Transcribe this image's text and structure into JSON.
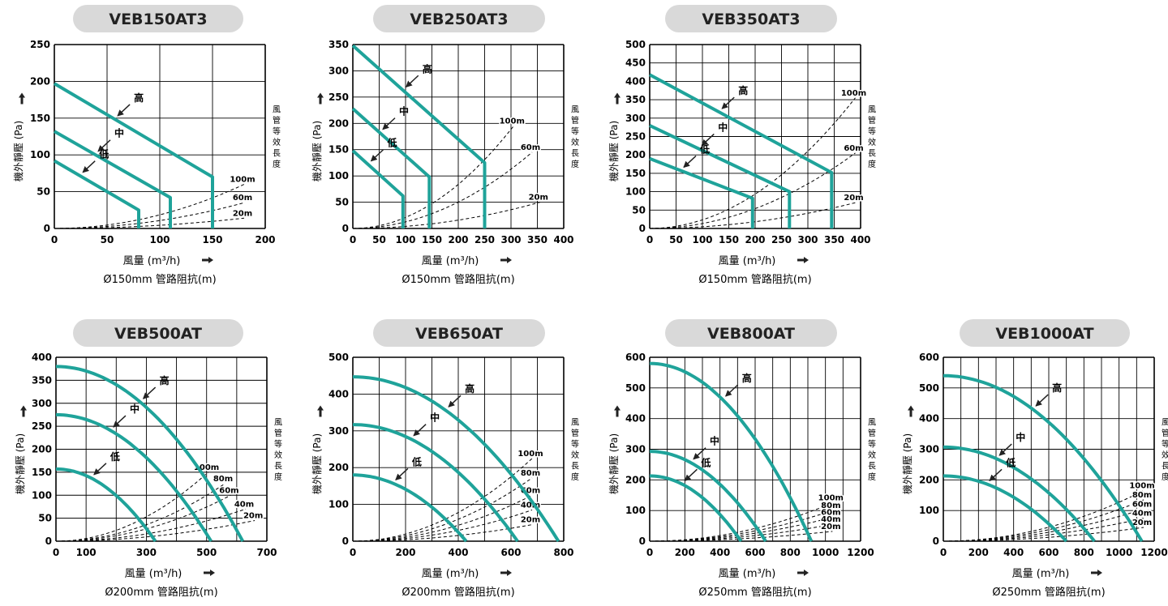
{
  "colors": {
    "curve": "#1fa39a",
    "grid": "#000000",
    "duct": "#000000",
    "pill": "#d9d9d9",
    "arrow": "#222222",
    "text": "#111111"
  },
  "icons": {
    "up_arrow": "arrow-up-icon",
    "right_arrow": "arrow-right-icon"
  },
  "chart_data": [
    {
      "type": "line",
      "title": "VEB150AT3",
      "ylabel": "機外靜壓 (Pa)",
      "xlabel": "風量 (m³/h)",
      "subxlabel": "Ø150mm 管路阻抗(m)",
      "duct_label": [
        "風",
        "管",
        "等",
        "效",
        "長",
        "度"
      ],
      "xlim": [
        0,
        200
      ],
      "ylim": [
        0,
        250
      ],
      "xticks": [
        0,
        50,
        100,
        150,
        200
      ],
      "yticks": [
        0,
        50,
        100,
        150,
        200,
        250
      ],
      "xtick_labels": [
        "0",
        "50",
        "100",
        "150",
        "200"
      ],
      "ytick_labels": [
        "0",
        "50",
        "100",
        "150",
        "200",
        "250"
      ],
      "grid": true,
      "series": [
        {
          "name": "高",
          "points": [
            [
              0,
              197
            ],
            [
              150,
              70
            ],
            [
              150,
              0
            ]
          ]
        },
        {
          "name": "中",
          "points": [
            [
              0,
              132
            ],
            [
              110,
              42
            ],
            [
              110,
              0
            ]
          ]
        },
        {
          "name": "低",
          "points": [
            [
              0,
              92
            ],
            [
              80,
              25
            ],
            [
              80,
              0
            ]
          ]
        }
      ],
      "duct_curves": [
        {
          "name": "100m",
          "end": [
            180,
            60
          ]
        },
        {
          "name": "60m",
          "end": [
            180,
            35
          ]
        },
        {
          "name": "20m",
          "end": [
            180,
            14
          ]
        }
      ]
    },
    {
      "type": "line",
      "title": "VEB250AT3",
      "ylabel": "機外靜壓 (Pa)",
      "xlabel": "風量 (m³/h)",
      "subxlabel": "Ø150mm 管路阻抗(m)",
      "duct_label": [
        "風",
        "管",
        "等",
        "效",
        "長",
        "度"
      ],
      "xlim": [
        0,
        400
      ],
      "ylim": [
        0,
        350
      ],
      "xticks": [
        0,
        50,
        100,
        150,
        200,
        250,
        300,
        350,
        400
      ],
      "yticks": [
        0,
        50,
        100,
        150,
        200,
        250,
        300,
        350
      ],
      "xtick_labels": [
        "0",
        "50",
        "100",
        "150",
        "200",
        "250",
        "300",
        "350",
        "400"
      ],
      "ytick_labels": [
        "0",
        "50",
        "100",
        "150",
        "200",
        "250",
        "300",
        "350"
      ],
      "grid": true,
      "series": [
        {
          "name": "高",
          "points": [
            [
              0,
              348
            ],
            [
              250,
              125
            ],
            [
              250,
              0
            ]
          ]
        },
        {
          "name": "中",
          "points": [
            [
              0,
              228
            ],
            [
              145,
              98
            ],
            [
              145,
              0
            ]
          ]
        },
        {
          "name": "低",
          "points": [
            [
              0,
              148
            ],
            [
              95,
              62
            ],
            [
              95,
              0
            ]
          ]
        }
      ],
      "duct_curves": [
        {
          "name": "100m",
          "end": [
            305,
            195
          ]
        },
        {
          "name": "60m",
          "end": [
            340,
            145
          ]
        },
        {
          "name": "20m",
          "end": [
            355,
            50
          ]
        }
      ]
    },
    {
      "type": "line",
      "title": "VEB350AT3",
      "ylabel": "機外靜壓 (Pa)",
      "xlabel": "風量 (m³/h)",
      "subxlabel": "Ø150mm 管路阻抗(m)",
      "duct_label": [
        "風",
        "管",
        "等",
        "效",
        "長",
        "度"
      ],
      "xlim": [
        0,
        400
      ],
      "ylim": [
        0,
        500
      ],
      "xticks": [
        0,
        50,
        100,
        150,
        200,
        250,
        300,
        350,
        400
      ],
      "yticks": [
        0,
        50,
        100,
        150,
        200,
        250,
        300,
        350,
        400,
        450,
        500
      ],
      "xtick_labels": [
        "0",
        "50",
        "100",
        "150",
        "200",
        "250",
        "300",
        "350",
        "400"
      ],
      "ytick_labels": [
        "0",
        "50",
        "100",
        "150",
        "200",
        "250",
        "300",
        "350",
        "400",
        "450",
        "500"
      ],
      "grid": true,
      "series": [
        {
          "name": "高",
          "points": [
            [
              0,
              418
            ],
            [
              345,
              152
            ],
            [
              345,
              0
            ]
          ]
        },
        {
          "name": "中",
          "points": [
            [
              0,
              280
            ],
            [
              265,
              100
            ],
            [
              265,
              0
            ]
          ]
        },
        {
          "name": "低",
          "points": [
            [
              0,
              190
            ],
            [
              195,
              82
            ],
            [
              195,
              0
            ]
          ]
        }
      ],
      "duct_curves": [
        {
          "name": "100m",
          "end": [
            390,
            355
          ]
        },
        {
          "name": "60m",
          "end": [
            390,
            205
          ]
        },
        {
          "name": "20m",
          "end": [
            390,
            70
          ]
        }
      ]
    },
    {
      "type": "line",
      "title": "VEB500AT",
      "ylabel": "機外靜壓 (Pa)",
      "xlabel": "風量 (m³/h)",
      "subxlabel": "Ø200mm 管路阻抗(m)",
      "duct_label": [
        "風",
        "管",
        "等",
        "效",
        "長",
        "度"
      ],
      "xlim": [
        0,
        700
      ],
      "ylim": [
        0,
        400
      ],
      "xticks": [
        0,
        100,
        200,
        300,
        400,
        500,
        600,
        700
      ],
      "yticks": [
        0,
        50,
        100,
        150,
        200,
        250,
        300,
        350,
        400
      ],
      "xtick_labels": [
        "0",
        "100",
        "",
        "300",
        "",
        "500",
        "",
        "700"
      ],
      "ytick_labels": [
        "0",
        "50",
        "100",
        "150",
        "200",
        "250",
        "300",
        "350",
        "400"
      ],
      "grid": true,
      "series": [
        {
          "name": "高",
          "quad": [
            380,
            620
          ]
        },
        {
          "name": "中",
          "quad": [
            275,
            515
          ]
        },
        {
          "name": "低",
          "quad": [
            157,
            330
          ]
        }
      ],
      "duct_curves": [
        {
          "name": "100m",
          "end": [
            505,
            150
          ]
        },
        {
          "name": "80m",
          "end": [
            560,
            125
          ]
        },
        {
          "name": "60m",
          "end": [
            580,
            100
          ]
        },
        {
          "name": "40m",
          "end": [
            630,
            70
          ]
        },
        {
          "name": "20m",
          "end": [
            660,
            45
          ]
        }
      ]
    },
    {
      "type": "line",
      "title": "VEB650AT",
      "ylabel": "機外靜壓 (Pa)",
      "xlabel": "風量 (m³/h)",
      "subxlabel": "Ø200mm 管路阻抗(m)",
      "duct_label": [
        "風",
        "管",
        "等",
        "效",
        "長",
        "度"
      ],
      "xlim": [
        0,
        800
      ],
      "ylim": [
        0,
        500
      ],
      "xticks": [
        0,
        100,
        200,
        300,
        400,
        500,
        600,
        700,
        800
      ],
      "yticks": [
        0,
        100,
        200,
        300,
        400,
        500
      ],
      "xtick_labels": [
        "0",
        "",
        "200",
        "",
        "400",
        "",
        "600",
        "",
        "800"
      ],
      "ytick_labels": [
        "0",
        "100",
        "200",
        "300",
        "400",
        "500"
      ],
      "grid": true,
      "series": [
        {
          "name": "高",
          "quad": [
            447,
            780
          ]
        },
        {
          "name": "中",
          "quad": [
            317,
            625
          ]
        },
        {
          "name": "低",
          "quad": [
            180,
            430
          ]
        }
      ],
      "duct_curves": [
        {
          "name": "100m",
          "end": [
            680,
            225
          ]
        },
        {
          "name": "80m",
          "end": [
            680,
            172
          ]
        },
        {
          "name": "60m",
          "end": [
            680,
            125
          ]
        },
        {
          "name": "40m",
          "end": [
            680,
            85
          ]
        },
        {
          "name": "20m",
          "end": [
            680,
            45
          ]
        }
      ]
    },
    {
      "type": "line",
      "title": "VEB800AT",
      "ylabel": "機外靜壓 (Pa)",
      "xlabel": "風量 (m³/h)",
      "subxlabel": "Ø250mm 管路阻抗(m)",
      "duct_label": [
        "風",
        "管",
        "等",
        "效",
        "長",
        "度"
      ],
      "xlim": [
        0,
        1200
      ],
      "ylim": [
        0,
        600
      ],
      "xticks": [
        0,
        100,
        200,
        300,
        400,
        500,
        600,
        700,
        800,
        900,
        1000,
        1100,
        1200
      ],
      "yticks": [
        0,
        100,
        200,
        300,
        400,
        500,
        600
      ],
      "xtick_labels": [
        "0",
        "",
        "200",
        "",
        "400",
        "",
        "600",
        "",
        "800",
        "",
        "1000",
        "",
        "1200"
      ],
      "ytick_labels": [
        "0",
        "100",
        "200",
        "300",
        "400",
        "500",
        "600"
      ],
      "grid": true,
      "series": [
        {
          "name": "高",
          "quad": [
            580,
            920
          ]
        },
        {
          "name": "中",
          "quad": [
            293,
            660
          ]
        },
        {
          "name": "低",
          "quad": [
            213,
            520
          ]
        }
      ],
      "duct_curves": [
        {
          "name": "100m",
          "end": [
            1040,
            125
          ]
        },
        {
          "name": "80m",
          "end": [
            1040,
            100
          ]
        },
        {
          "name": "60m",
          "end": [
            1040,
            78
          ]
        },
        {
          "name": "40m",
          "end": [
            1040,
            55
          ]
        },
        {
          "name": "20m",
          "end": [
            1040,
            32
          ]
        }
      ]
    },
    {
      "type": "line",
      "title": "VEB1000AT",
      "ylabel": "機外靜壓 (Pa)",
      "xlabel": "風量 (m³/h)",
      "subxlabel": "Ø250mm 管路阻抗(m)",
      "duct_label": [
        "風",
        "管",
        "等",
        "效",
        "長",
        "度"
      ],
      "xlim": [
        0,
        1200
      ],
      "ylim": [
        0,
        600
      ],
      "xticks": [
        0,
        100,
        200,
        300,
        400,
        500,
        600,
        700,
        800,
        900,
        1000,
        1100,
        1200
      ],
      "yticks": [
        0,
        100,
        200,
        300,
        400,
        500,
        600
      ],
      "xtick_labels": [
        "0",
        "",
        "200",
        "",
        "400",
        "",
        "600",
        "",
        "800",
        "",
        "1000",
        "",
        "1200"
      ],
      "ytick_labels": [
        "0",
        "100",
        "200",
        "300",
        "400",
        "500",
        "600"
      ],
      "grid": true,
      "series": [
        {
          "name": "高",
          "quad": [
            540,
            1130
          ]
        },
        {
          "name": "中",
          "quad": [
            307,
            860
          ]
        },
        {
          "name": "低",
          "quad": [
            213,
            700
          ]
        }
      ],
      "duct_curves": [
        {
          "name": "100m",
          "end": [
            1140,
            165
          ]
        },
        {
          "name": "80m",
          "end": [
            1140,
            135
          ]
        },
        {
          "name": "60m",
          "end": [
            1140,
            105
          ]
        },
        {
          "name": "40m",
          "end": [
            1140,
            75
          ]
        },
        {
          "name": "20m",
          "end": [
            1140,
            45
          ]
        }
      ]
    }
  ]
}
